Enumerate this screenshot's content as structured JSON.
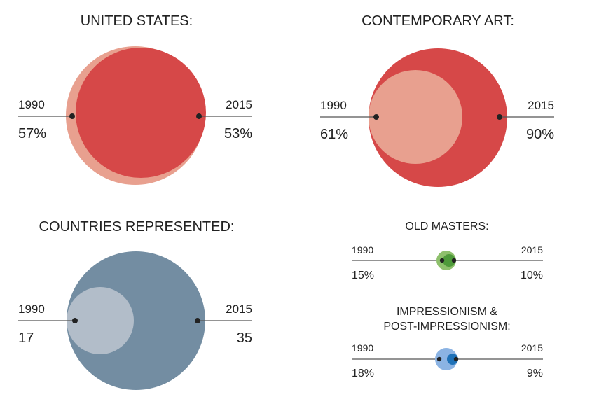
{
  "colors": {
    "red_dark": "#d64848",
    "red_light": "#e8a08f",
    "slate_dark": "#738da2",
    "slate_light": "#b2bdc9",
    "green_dark": "#4e9a3a",
    "green_light": "#8ec06c",
    "blue_dark": "#1f72b8",
    "blue_light": "#8bb3e3",
    "line": "#555555",
    "dot": "#222222"
  },
  "chart_data": [
    {
      "type": "bubble-comparison",
      "title": "UNITED STATES:",
      "start": {
        "year": "1990",
        "label": "57%",
        "value": 57
      },
      "end": {
        "year": "2015",
        "label": "53%",
        "value": 53
      }
    },
    {
      "type": "bubble-comparison",
      "title": "CONTEMPORARY ART:",
      "start": {
        "year": "1990",
        "label": "61%",
        "value": 61
      },
      "end": {
        "year": "2015",
        "label": "90%",
        "value": 90
      }
    },
    {
      "type": "bubble-comparison",
      "title": "COUNTRIES REPRESENTED:",
      "start": {
        "year": "1990",
        "label": "17",
        "value": 17
      },
      "end": {
        "year": "2015",
        "label": "35",
        "value": 35
      }
    },
    {
      "type": "bubble-comparison",
      "title": "OLD MASTERS:",
      "start": {
        "year": "1990",
        "label": "15%",
        "value": 15
      },
      "end": {
        "year": "2015",
        "label": "10%",
        "value": 10
      }
    },
    {
      "type": "bubble-comparison",
      "title_lines": [
        "IMPRESSIONISM &",
        "POST-IMPRESSIONISM:"
      ],
      "start": {
        "year": "1990",
        "label": "18%",
        "value": 18
      },
      "end": {
        "year": "2015",
        "label": "9%",
        "value": 9
      }
    }
  ]
}
